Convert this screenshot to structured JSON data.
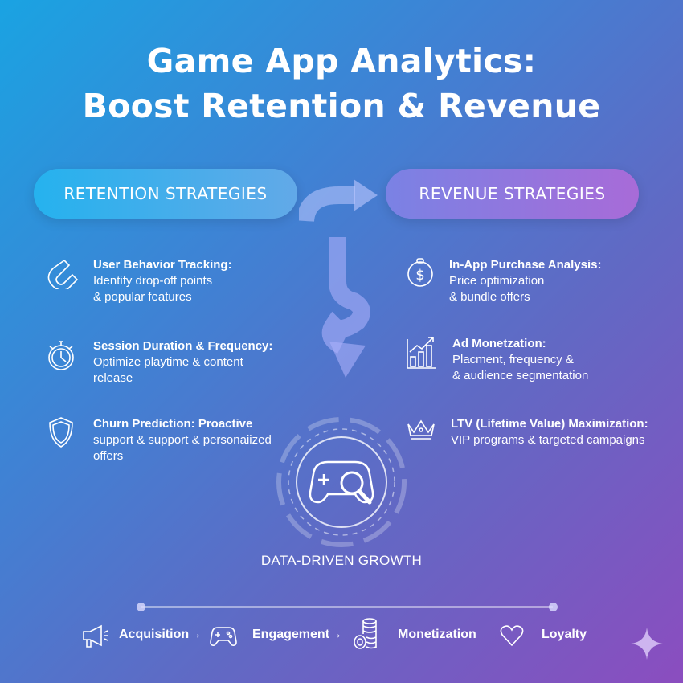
{
  "title": {
    "line1": "Game App Analytics:",
    "line2": "Boost Retention & Revenue"
  },
  "retention": {
    "label": "RETENTION STRATEGIES",
    "items": [
      {
        "icon": "magnet-icon",
        "heading": "User Behavior Tracking:",
        "line1": "Identify drop-off points",
        "line2": "& popular features"
      },
      {
        "icon": "stopwatch-icon",
        "heading": "Session Duration & Frequency:",
        "line1": "Optimize playtime & content",
        "line2": "release"
      },
      {
        "icon": "shield-icon",
        "heading": "Churn Prediction: Proactive",
        "line1": "support & support & personaiized",
        "line2": "offers"
      }
    ]
  },
  "revenue": {
    "label": "REVENUE STRATEGIES",
    "items": [
      {
        "icon": "dollar-coin-icon",
        "heading": "In-App Purchase Analysis:",
        "line1": "Price optimization",
        "line2": "& bundle offers"
      },
      {
        "icon": "bar-chart-growth-icon",
        "heading": "Ad Monetzation:",
        "line1": "Placment, frequency &",
        "line2": "& audience segmentation"
      },
      {
        "icon": "crown-icon",
        "heading": "LTV (Lifetime Value) Maximization:",
        "line1": "VIP programs & targeted campaigns",
        "line2": ""
      }
    ]
  },
  "center": {
    "icon": "gamepad-magnifier-icon",
    "label": "DATA-DRIVEN GROWTH"
  },
  "funnel": [
    {
      "icon": "megaphone-icon",
      "label": "Acquisition→"
    },
    {
      "icon": "gamepad-icon",
      "label": "Engagement→"
    },
    {
      "icon": "coins-icon",
      "label": "Monetization"
    },
    {
      "icon": "heart-icon",
      "label": "Loyalty"
    }
  ],
  "colors": {
    "bg_start": "#1aa3e2",
    "bg_end": "#8b4dbf",
    "retention_pill": "#25b2ee",
    "revenue_pill": "#a86bd8"
  }
}
